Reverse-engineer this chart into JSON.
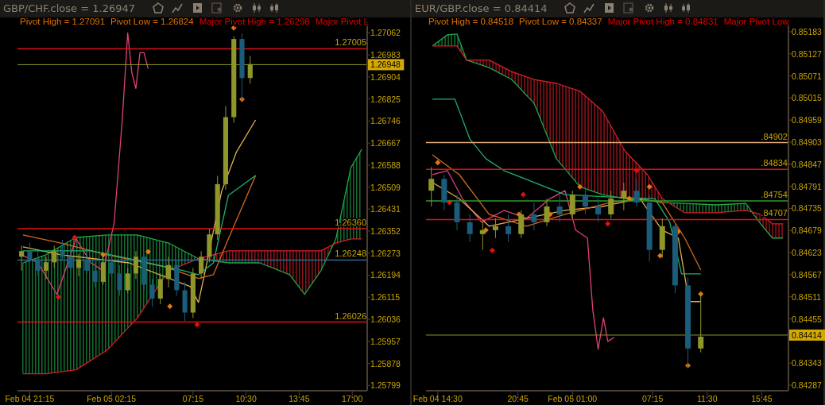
{
  "chart_data": [
    {
      "type": "candlestick",
      "title": "GBP/CHF.close = 1.26947",
      "annotations": [
        "Pivot High = 1.27091",
        "Pivot Low = 1.26824",
        "Major Pivot High = 1.26298",
        "Major Pivot L"
      ],
      "x": [
        "--02-04T20:45",
        "--02-04T21:15",
        "--02-04T21:45",
        "--02-04T22:15",
        "--02-04T22:45",
        "--02-04T23:15",
        "--02-04T23:45",
        "--02-05T00:15",
        "--02-05T00:45",
        "--02-05T01:15",
        "--02-05T01:45",
        "--02-05T02:15",
        "--02-05T02:45",
        "--02-05T03:15",
        "--02-05T03:45",
        "--02-05T04:15",
        "--02-05T04:45",
        "--02-05T05:15",
        "--02-05T05:45",
        "--02-05T06:15",
        "--02-05T06:45",
        "--02-05T07:15",
        "--02-05T07:45",
        "--02-05T08:15",
        "--02-05T08:45",
        "--02-05T09:15",
        "--02-05T09:45",
        "--02-05T10:15",
        "--02-05T10:45"
      ],
      "ohlc": [
        [
          1.2626,
          1.263,
          1.2621,
          1.2628
        ],
        [
          1.2628,
          1.2631,
          1.2624,
          1.2625
        ],
        [
          1.2625,
          1.2628,
          1.2619,
          1.2621
        ],
        [
          1.2621,
          1.2626,
          1.2618,
          1.2624
        ],
        [
          1.2624,
          1.263,
          1.2622,
          1.2628
        ],
        [
          1.2628,
          1.2632,
          1.2625,
          1.2626
        ],
        [
          1.2626,
          1.2629,
          1.262,
          1.2622
        ],
        [
          1.2622,
          1.2627,
          1.2619,
          1.2625
        ],
        [
          1.2625,
          1.2628,
          1.262,
          1.2621
        ],
        [
          1.2621,
          1.2624,
          1.2615,
          1.2617
        ],
        [
          1.2617,
          1.2626,
          1.2616,
          1.2624
        ],
        [
          1.2624,
          1.2628,
          1.2619,
          1.262
        ],
        [
          1.262,
          1.2623,
          1.2612,
          1.2614
        ],
        [
          1.2614,
          1.2622,
          1.2613,
          1.262
        ],
        [
          1.262,
          1.2628,
          1.2618,
          1.2626
        ],
        [
          1.2626,
          1.2627,
          1.2614,
          1.2616
        ],
        [
          1.2616,
          1.2618,
          1.2608,
          1.2611
        ],
        [
          1.2611,
          1.262,
          1.2609,
          1.2618
        ],
        [
          1.2618,
          1.2626,
          1.2615,
          1.2623
        ],
        [
          1.2623,
          1.2625,
          1.2612,
          1.2614
        ],
        [
          1.2614,
          1.2617,
          1.2603,
          1.2606
        ],
        [
          1.2606,
          1.2622,
          1.2604,
          1.262
        ],
        [
          1.262,
          1.2628,
          1.2618,
          1.2626
        ],
        [
          1.2626,
          1.2636,
          1.2624,
          1.2634
        ],
        [
          1.2634,
          1.2655,
          1.2632,
          1.2652
        ],
        [
          1.2652,
          1.268,
          1.265,
          1.2676
        ],
        [
          1.2676,
          1.2705,
          1.2674,
          1.2704
        ],
        [
          1.2704,
          1.2706,
          1.2682,
          1.269
        ],
        [
          1.269,
          1.2698,
          1.2688,
          1.2695
        ]
      ],
      "colors": [
        "#8f962a",
        "#1b5c7a",
        "#1b5c7a",
        "#8f962a",
        "#8f962a",
        "#1b5c7a",
        "#1b5c7a",
        "#8f962a",
        "#1b5c7a",
        "#1b5c7a",
        "#8f962a",
        "#1b5c7a",
        "#1b5c7a",
        "#8f962a",
        "#8f962a",
        "#1b5c7a",
        "#1b5c7a",
        "#8f962a",
        "#8f962a",
        "#1b5c7a",
        "#1b5c7a",
        "#8f962a",
        "#8f962a",
        "#8f962a",
        "#8f962a",
        "#8f962a",
        "#8f962a",
        "#1b5c7a",
        "#8f962a"
      ],
      "series": [
        {
          "type": "line",
          "color": "#1fa64a",
          "x": [
            "--02-04T20:50",
            "--02-04T22:15",
            "--02-05T00:05",
            "--02-05T02:00",
            "--02-05T03:50",
            "--02-05T05:45",
            "--02-05T07:35",
            "--02-05T09:25",
            "--02-05T11:20",
            "--02-05T13:10",
            "--02-05T14:05",
            "--02-05T15:05",
            "--02-05T16:00",
            "--02-05T16:55",
            "--02-05T17:35"
          ],
          "values": [
            1.26238,
            1.26267,
            1.26329,
            1.26338,
            1.26338,
            1.26309,
            1.26253,
            1.26238,
            1.26238,
            1.26196,
            1.26125,
            1.2621,
            1.26324,
            1.26579,
            1.26645
          ]
        },
        {
          "type": "line",
          "color": "#d81e2a",
          "x": [
            "--02-04T20:50",
            "--02-04T22:15",
            "--02-05T00:05",
            "--02-05T02:00",
            "--02-05T03:50",
            "--02-05T05:45",
            "--02-05T07:35",
            "--02-05T09:25",
            "--02-05T11:20",
            "--02-05T13:10",
            "--02-05T14:05",
            "--02-05T15:05",
            "--02-05T16:00",
            "--02-05T16:55",
            "--02-05T17:35"
          ],
          "values": [
            1.25841,
            1.25841,
            1.25855,
            1.25926,
            1.2604,
            1.2621,
            1.26253,
            1.26281,
            1.26281,
            1.26281,
            1.26281,
            1.26281,
            1.26309,
            1.26324,
            1.26324
          ]
        },
        {
          "type": "line",
          "color": "#e0407a",
          "x": [
            "--02-04T20:45",
            "--02-04T21:45",
            "--02-04T22:55",
            "--02-05T00:05",
            "--02-05T01:00",
            "--02-05T01:45",
            "--02-05T02:25",
            "--02-05T02:55",
            "--02-05T03:15",
            "--02-05T03:30",
            "--02-05T03:45",
            "--02-05T04:00",
            "--02-05T04:15",
            "--02-05T04:30"
          ],
          "values": [
            1.26267,
            1.26238,
            1.26125,
            1.26324,
            1.26238,
            1.2621,
            1.2638,
            1.2675,
            1.27062,
            1.2692,
            1.26863,
            1.26991,
            1.26991,
            1.26934
          ]
        },
        {
          "type": "line",
          "color": "#e0b050",
          "x": [
            "--02-04T20:50",
            "--02-04T23:10",
            "--02-05T03:20",
            "--02-05T07:05",
            "--02-05T07:35",
            "--02-05T08:00",
            "--02-05T09:00",
            "--02-05T09:55",
            "--02-05T11:05"
          ],
          "values": [
            1.26295,
            1.26267,
            1.26238,
            1.26153,
            1.26096,
            1.2621,
            1.26494,
            1.26636,
            1.2675
          ]
        },
        {
          "type": "line",
          "color": "#d2691e",
          "x": [
            "--02-04T20:50",
            "--02-04T23:10",
            "--02-05T02:00",
            "--02-05T05:30",
            "--02-05T07:35",
            "--02-05T08:30",
            "--02-05T09:25",
            "--02-05T11:05"
          ],
          "values": [
            1.26338,
            1.26309,
            1.26267,
            1.26224,
            1.26182,
            1.26196,
            1.26324,
            1.26551
          ]
        },
        {
          "type": "line",
          "color": "#20b070",
          "x": [
            "--02-04T20:50",
            "--02-05T01:00",
            "--02-05T03:20",
            "--02-05T06:40",
            "--02-05T07:35",
            "--02-05T08:30",
            "--02-05T09:25",
            "--02-05T11:05"
          ],
          "values": [
            1.26281,
            1.26281,
            1.26253,
            1.2621,
            1.26196,
            1.26238,
            1.2648,
            1.26551
          ]
        },
        {
          "type": "scatter",
          "marker": "diamond",
          "color": "#e8780a",
          "x": [
            "--02-05T01:45",
            "--02-05T04:30",
            "--02-05T05:50",
            "--02-05T09:45",
            "--02-05T10:15"
          ],
          "values": [
            1.26267,
            1.26278,
            1.26082,
            1.2708,
            1.26824
          ]
        },
        {
          "type": "scatter",
          "marker": "diamond",
          "color": "#e01010",
          "x": [
            "--02-04T23:00",
            "--02-05T00:00",
            "--02-05T07:30"
          ],
          "values": [
            1.26116,
            1.26329,
            1.26017
          ]
        }
      ],
      "ref_lines": [
        {
          "axis": "y",
          "value": 1.27005,
          "label": "1.27005",
          "color": "#e01010"
        },
        {
          "axis": "y",
          "value": 1.26948,
          "color": "#8f962a"
        },
        {
          "axis": "y",
          "value": 1.2636,
          "label": "1.26360",
          "color": "#e01010"
        },
        {
          "axis": "y",
          "value": 1.26248,
          "label": "1.26248",
          "color": "#2a6a90"
        },
        {
          "axis": "y",
          "value": 1.26026,
          "label": "1.26026",
          "color": "#e01010"
        }
      ],
      "xlim": [
        "--02-04T20:30",
        "--02-05T17:55"
      ],
      "xticks": [
        {
          "value": "--02-04T21:15",
          "label": "Feb 04 21:15"
        },
        {
          "value": "--02-05T02:15",
          "label": "Feb 05 02:15"
        },
        {
          "value": "--02-05T07:15",
          "label": "07:15"
        },
        {
          "value": "--02-05T10:30",
          "label": "10:30"
        },
        {
          "value": "--02-05T13:45",
          "label": "13:45"
        },
        {
          "value": "--02-05T17:00",
          "label": "17:00"
        }
      ],
      "ylim": [
        1.2578,
        1.271
      ],
      "yticks": [
        1.27062,
        1.26983,
        1.26948,
        1.26904,
        1.26825,
        1.26746,
        1.26667,
        1.26588,
        1.26509,
        1.26431,
        1.26352,
        1.26273,
        1.26194,
        1.26115,
        1.26036,
        1.25957,
        1.25878,
        1.25799
      ]
    },
    {
      "type": "candlestick",
      "title": "EUR/GBP.close = 0.84414",
      "annotations": [
        "Pivot High = 0.84518",
        "Pivot Low = 0.84337",
        "Major Pivot High = 0.84831",
        "Major Pivot Low"
      ],
      "x": [
        "--02-04T14:00",
        "--02-04T15:00",
        "--02-04T16:00",
        "--02-04T17:00",
        "--02-04T18:00",
        "--02-04T19:00",
        "--02-04T20:00",
        "--02-04T21:00",
        "--02-04T22:00",
        "--02-04T23:00",
        "--02-05T00:00",
        "--02-05T01:00",
        "--02-05T02:00",
        "--02-05T03:00",
        "--02-05T04:00",
        "--02-05T05:00",
        "--02-05T06:00",
        "--02-05T07:00",
        "--02-05T08:00",
        "--02-05T09:00",
        "--02-05T10:00",
        "--02-05T11:00"
      ],
      "ohlc": [
        [
          0.8478,
          0.8484,
          0.8474,
          0.8481
        ],
        [
          0.8481,
          0.8482,
          0.8473,
          0.8475
        ],
        [
          0.8475,
          0.8477,
          0.8468,
          0.847
        ],
        [
          0.847,
          0.8472,
          0.8465,
          0.8467
        ],
        [
          0.8467,
          0.847,
          0.8463,
          0.8468
        ],
        [
          0.8468,
          0.8471,
          0.8466,
          0.8469
        ],
        [
          0.8469,
          0.8472,
          0.8465,
          0.8467
        ],
        [
          0.8467,
          0.8473,
          0.8466,
          0.8472
        ],
        [
          0.8472,
          0.8475,
          0.8468,
          0.847
        ],
        [
          0.847,
          0.8476,
          0.8469,
          0.8474
        ],
        [
          0.8474,
          0.8477,
          0.847,
          0.8472
        ],
        [
          0.8472,
          0.8478,
          0.8471,
          0.8477
        ],
        [
          0.8477,
          0.8479,
          0.8472,
          0.8474
        ],
        [
          0.8474,
          0.8476,
          0.847,
          0.8472
        ],
        [
          0.8472,
          0.8478,
          0.8471,
          0.8476
        ],
        [
          0.8476,
          0.848,
          0.8473,
          0.8478
        ],
        [
          0.8478,
          0.8481,
          0.8474,
          0.8475
        ],
        [
          0.8475,
          0.8477,
          0.846,
          0.8463
        ],
        [
          0.8463,
          0.8471,
          0.8461,
          0.8469
        ],
        [
          0.8469,
          0.847,
          0.8452,
          0.8454
        ],
        [
          0.8454,
          0.8456,
          0.8433,
          0.8438
        ],
        [
          0.8438,
          0.8452,
          0.8437,
          0.8441
        ]
      ],
      "colors": [
        "#8f962a",
        "#1b5c7a",
        "#1b5c7a",
        "#1b5c7a",
        "#8f962a",
        "#8f962a",
        "#1b5c7a",
        "#8f962a",
        "#1b5c7a",
        "#8f962a",
        "#1b5c7a",
        "#8f962a",
        "#1b5c7a",
        "#1b5c7a",
        "#8f962a",
        "#8f962a",
        "#1b5c7a",
        "#1b5c7a",
        "#8f962a",
        "#1b5c7a",
        "#1b5c7a",
        "#8f962a"
      ],
      "series": [
        {
          "type": "line",
          "color": "#1fa64a",
          "x": [
            "--02-04T14:05",
            "--02-04T15:15",
            "--02-04T16:00",
            "--02-04T16:45",
            "--02-04T18:30",
            "--02-04T20:15",
            "--02-04T22:00",
            "--02-04T23:45",
            "--02-05T01:35",
            "--02-05T03:20",
            "--02-05T05:05",
            "--02-05T06:50",
            "--02-05T08:00",
            "--02-05T09:45",
            "--02-05T12:10",
            "--02-05T14:30",
            "--02-05T15:40",
            "--02-05T16:35",
            "--02-05T17:25"
          ],
          "values": [
            0.85147,
            0.85175,
            0.85177,
            0.85111,
            0.85092,
            0.85062,
            0.85002,
            0.84861,
            0.8479,
            0.8477,
            0.8476,
            0.84756,
            0.8475,
            0.84748,
            0.84744,
            0.84748,
            0.84696,
            0.8466,
            0.8466
          ]
        },
        {
          "type": "line",
          "color": "#d81e2a",
          "x": [
            "--02-04T14:05",
            "--02-04T15:15",
            "--02-04T16:00",
            "--02-04T16:45",
            "--02-04T18:30",
            "--02-04T20:15",
            "--02-04T22:00",
            "--02-04T23:45",
            "--02-05T01:35",
            "--02-05T03:20",
            "--02-05T05:05",
            "--02-05T06:50",
            "--02-05T08:00",
            "--02-05T09:45",
            "--02-05T12:10",
            "--02-05T14:30",
            "--02-05T15:40",
            "--02-05T16:35",
            "--02-05T17:25"
          ],
          "values": [
            0.85147,
            0.85147,
            0.85147,
            0.85111,
            0.85111,
            0.85082,
            0.85062,
            0.85052,
            0.85032,
            0.84982,
            0.84881,
            0.84821,
            0.8476,
            0.84724,
            0.84724,
            0.8473,
            0.8472,
            0.84696,
            0.84696
          ]
        },
        {
          "type": "line",
          "color": "#e0407a",
          "x": [
            "--02-04T14:05",
            "--02-04T15:15",
            "--02-04T16:25",
            "--02-04T17:55",
            "--02-04T19:40",
            "--02-04T21:25",
            "--02-04T23:15",
            "--02-05T00:25",
            "--02-05T01:15",
            "--02-05T02:10",
            "--02-05T02:35",
            "--02-05T03:00",
            "--02-05T03:25",
            "--02-05T03:45",
            "--02-05T04:15"
          ],
          "values": [
            0.84821,
            0.84831,
            0.8476,
            0.847,
            0.8473,
            0.8471,
            0.8476,
            0.8478,
            0.8468,
            0.8466,
            0.84478,
            0.84378,
            0.84458,
            0.84398,
            0.84408
          ]
        },
        {
          "type": "line",
          "color": "#e0b050",
          "x": [
            "--02-04T14:05",
            "--02-04T16:10",
            "--02-04T18:30",
            "--02-04T21:25",
            "--02-05T00:25",
            "--02-05T03:20",
            "--02-05T06:15",
            "--02-05T08:00",
            "--02-05T09:15",
            "--02-05T10:05",
            "--02-05T11:00"
          ],
          "values": [
            0.84801,
            0.8476,
            0.8469,
            0.8471,
            0.8473,
            0.8474,
            0.8476,
            0.8468,
            0.8466,
            0.84499,
            0.84499
          ]
        },
        {
          "type": "line",
          "color": "#d2691e",
          "x": [
            "--02-04T14:05",
            "--02-04T16:10",
            "--02-04T18:30",
            "--02-04T21:25",
            "--02-05T00:25",
            "--02-05T03:55",
            "--02-05T06:15",
            "--02-05T08:00",
            "--02-05T09:45",
            "--02-05T11:00"
          ],
          "values": [
            0.84871,
            0.84821,
            0.8472,
            0.8469,
            0.8472,
            0.8475,
            0.8476,
            0.8475,
            0.8466,
            0.84579
          ]
        },
        {
          "type": "line",
          "color": "#20b070",
          "x": [
            "--02-04T14:05",
            "--02-04T15:50",
            "--02-04T17:00",
            "--02-04T18:15",
            "--02-04T19:40",
            "--02-04T22:00",
            "--02-05T00:25",
            "--02-05T03:55",
            "--02-05T07:25",
            "--02-05T08:35",
            "--02-05T09:30",
            "--02-05T11:00"
          ],
          "values": [
            0.85012,
            0.85012,
            0.84911,
            0.84861,
            0.84831,
            0.84801,
            0.8477,
            0.84764,
            0.8476,
            0.847,
            0.84569,
            0.84569
          ]
        },
        {
          "type": "scatter",
          "marker": "diamond",
          "color": "#e8780a",
          "x": [
            "--02-04T14:30",
            "--02-04T18:15",
            "--02-04T20:50",
            "--02-04T23:15",
            "--02-05T01:35",
            "--02-05T05:25",
            "--02-05T07:00",
            "--02-05T07:50",
            "--02-05T09:15",
            "--02-05T10:00",
            "--02-05T11:00"
          ],
          "values": [
            0.84851,
            0.8468,
            0.8472,
            0.8472,
            0.8479,
            0.8476,
            0.8479,
            0.84615,
            0.84676,
            0.84337,
            0.84518
          ]
        },
        {
          "type": "scatter",
          "marker": "diamond",
          "color": "#e01010",
          "x": [
            "--02-04T15:25",
            "--02-04T18:45",
            "--02-04T21:10",
            "--02-05T03:45",
            "--02-05T06:00"
          ],
          "values": [
            0.8475,
            0.84629,
            0.8477,
            0.84696,
            0.84831
          ]
        }
      ],
      "ref_lines": [
        {
          "axis": "y",
          "value": 0.84902,
          "label": ".84902",
          "color": "#e0a878"
        },
        {
          "axis": "y",
          "value": 0.84834,
          "label": ".84834",
          "color": "#e01010"
        },
        {
          "axis": "y",
          "value": 0.84754,
          "label": ".84754",
          "color": "#2e9b2e"
        },
        {
          "axis": "y",
          "value": 0.84707,
          "label": ".84707",
          "color": "#e01010"
        },
        {
          "axis": "y",
          "value": 0.84414,
          "color": "#8f962a"
        }
      ],
      "xlim": [
        "--02-04T13:35",
        "--02-05T17:50"
      ],
      "xticks": [
        {
          "value": "--02-04T14:30",
          "label": "Feb 04 14:30"
        },
        {
          "value": "--02-04T20:45",
          "label": "20:45"
        },
        {
          "value": "--02-05T01:00",
          "label": "Feb 05 01:00"
        },
        {
          "value": "--02-05T07:15",
          "label": "07:15"
        },
        {
          "value": "--02-05T11:30",
          "label": "11:30"
        },
        {
          "value": "--02-05T15:45",
          "label": "15:45"
        }
      ],
      "ylim": [
        0.84273,
        0.85207
      ],
      "yticks": [
        0.85183,
        0.85127,
        0.85071,
        0.85015,
        0.84959,
        0.84903,
        0.84847,
        0.84791,
        0.84735,
        0.84679,
        0.84623,
        0.84567,
        0.84511,
        0.84455,
        0.84414,
        0.84343,
        0.84287
      ]
    }
  ]
}
